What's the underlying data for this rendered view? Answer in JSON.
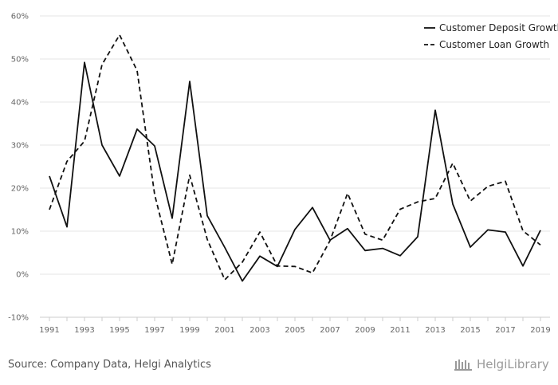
{
  "chart_data": {
    "type": "line",
    "x": [
      1991,
      1992,
      1993,
      1994,
      1995,
      1996,
      1997,
      1998,
      1999,
      2000,
      2001,
      2002,
      2003,
      2004,
      2005,
      2006,
      2007,
      2008,
      2009,
      2010,
      2011,
      2012,
      2013,
      2014,
      2015,
      2016,
      2017,
      2018,
      2019
    ],
    "series": [
      {
        "name": "Customer Deposit Growth",
        "style": "solid",
        "color": "#111111",
        "values": [
          22.8,
          11.0,
          49.2,
          30.0,
          22.8,
          33.7,
          29.8,
          13.0,
          44.8,
          13.6,
          6.2,
          -1.6,
          4.2,
          1.8,
          10.4,
          15.5,
          7.9,
          10.6,
          5.5,
          6.0,
          4.3,
          8.7,
          38.1,
          16.3,
          6.3,
          10.3,
          9.8,
          1.9,
          10.2
        ]
      },
      {
        "name": "Customer Loan Growth",
        "style": "dashed",
        "color": "#111111",
        "values": [
          15.0,
          26.2,
          30.9,
          48.7,
          55.6,
          47.3,
          18.5,
          2.3,
          23.0,
          8.1,
          -1.3,
          2.8,
          9.8,
          1.9,
          1.8,
          0.3,
          7.8,
          18.8,
          9.3,
          7.9,
          15.1,
          16.8,
          17.6,
          25.8,
          17.0,
          20.4,
          21.6,
          10.1,
          6.8
        ]
      }
    ],
    "y_ticks": [
      "-10%",
      "0%",
      "10%",
      "20%",
      "30%",
      "40%",
      "50%",
      "60%"
    ],
    "x_tick_labels": [
      "1991",
      "1993",
      "1995",
      "1997",
      "1999",
      "2001",
      "2003",
      "2005",
      "2007",
      "2009",
      "2011",
      "2013",
      "2015",
      "2017",
      "2019"
    ],
    "ylim": [
      -10,
      60
    ],
    "xlim": [
      1991,
      2019
    ],
    "grid": true,
    "legend_position": "top-right",
    "title": "",
    "xlabel": "",
    "ylabel": ""
  },
  "footer": {
    "source": "Source: Company Data, Helgi Analytics",
    "brand": "HelgiLibrary",
    "brand_icon": "library-icon"
  }
}
